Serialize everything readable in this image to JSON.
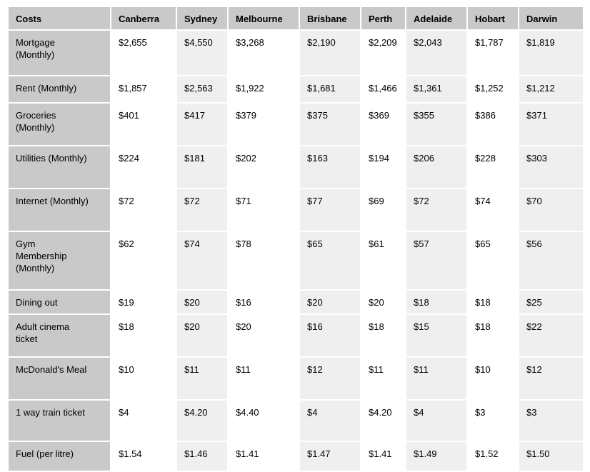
{
  "colors": {
    "header_bg": "#c9c9c9",
    "label_column_bg": "#c9c9c9",
    "stripe_column_bg": "#efefef",
    "cell_bg": "#ffffff",
    "text": "#000000",
    "page_bg": "#ffffff"
  },
  "chart_data": {
    "type": "table",
    "columns": [
      "Costs",
      "Canberra",
      "Sydney",
      "Melbourne",
      "Brisbane",
      "Perth",
      "Adelaide",
      "Hobart",
      "Darwin"
    ],
    "rows": [
      {
        "label": "Mortgage\n(Monthly)",
        "values": [
          "$2,655",
          "$4,550",
          "$3,268",
          "$2,190",
          "$2,209",
          "$2,043",
          "$1,787",
          "$1,819"
        ]
      },
      {
        "label": "Rent (Monthly)",
        "values": [
          "$1,857",
          "$2,563",
          "$1,922",
          "$1,681",
          "$1,466",
          "$1,361",
          "$1,252",
          "$1,212"
        ]
      },
      {
        "label": "Groceries\n(Monthly)",
        "values": [
          "$401",
          "$417",
          "$379",
          "$375",
          "$369",
          "$355",
          "$386",
          "$371"
        ]
      },
      {
        "label": "Utilities (Monthly)",
        "values": [
          "$224",
          "$181",
          "$202",
          "$163",
          "$194",
          "$206",
          "$228",
          "$303"
        ]
      },
      {
        "label": "Internet (Monthly)",
        "values": [
          "$72",
          "$72",
          "$71",
          "$77",
          "$69",
          "$72",
          "$74",
          "$70"
        ]
      },
      {
        "label": "Gym\nMembership\n(Monthly)",
        "values": [
          "$62",
          "$74",
          "$78",
          "$65",
          "$61",
          "$57",
          "$65",
          "$56"
        ]
      },
      {
        "label": "Dining out",
        "values": [
          "$19",
          "$20",
          "$16",
          "$20",
          "$20",
          "$18",
          "$18",
          "$25"
        ]
      },
      {
        "label": "Adult cinema\nticket",
        "values": [
          "$18",
          "$20",
          "$20",
          "$16",
          "$18",
          "$15",
          "$18",
          "$22"
        ]
      },
      {
        "label": "McDonald's Meal",
        "values": [
          "$10",
          "$11",
          "$11",
          "$12",
          "$11",
          "$11",
          "$10",
          "$12"
        ]
      },
      {
        "label": "1 way train ticket",
        "values": [
          "$4",
          "$4.20",
          "$4.40",
          "$4",
          "$4.20",
          "$4",
          "$3",
          "$3"
        ]
      },
      {
        "label": "Fuel (per litre)",
        "values": [
          "$1.54",
          "$1.46",
          "$1.41",
          "$1.47",
          "$1.41",
          "$1.49",
          "$1.52",
          "$1.50"
        ]
      }
    ]
  }
}
